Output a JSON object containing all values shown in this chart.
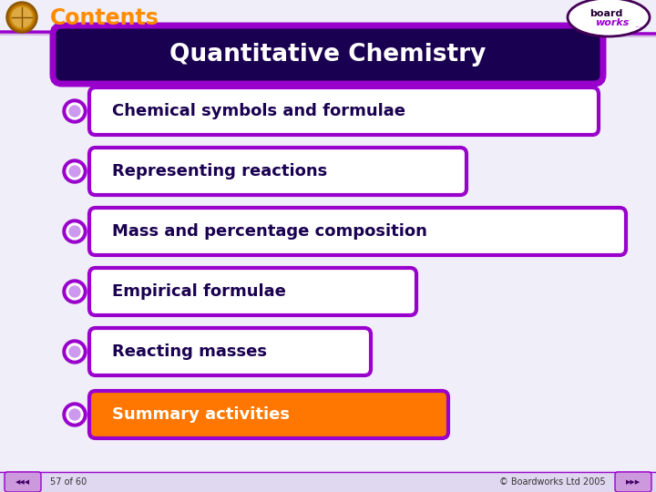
{
  "title": "Contents",
  "title_color": "#FF8C00",
  "slide_bg_color": "#F0EEF8",
  "header_bar_color": "#1A0050",
  "header_bar_border_color": "#9900CC",
  "header_text": "Quantitative Chemistry",
  "header_text_color": "#FFFFFF",
  "items": [
    "Chemical symbols and formulae",
    "Representing reactions",
    "Mass and percentage composition",
    "Empirical formulae",
    "Reacting masses",
    "Summary activities"
  ],
  "item_bg_colors": [
    "#FFFFFF",
    "#FFFFFF",
    "#FFFFFF",
    "#FFFFFF",
    "#FFFFFF",
    "#FF7700"
  ],
  "item_text_colors": [
    "#1A0050",
    "#1A0050",
    "#1A0050",
    "#1A0050",
    "#1A0050",
    "#FFFFFF"
  ],
  "item_border_color": "#9900CC",
  "bullet_outer_color": "#9900CC",
  "bullet_mid_color": "#FFFFFF",
  "bullet_inner_color": "#CC99EE",
  "bottom_bar_color": "#E0D8F0",
  "bottom_bar_line_color": "#9900CC",
  "bottom_text": "57 of 60",
  "bottom_right_text": "© Boardworks Ltd 2005",
  "footer_text_color": "#333333",
  "header_line_color": "#9900CC",
  "nav_btn_color": "#CC99DD",
  "nav_btn_border": "#9900CC"
}
